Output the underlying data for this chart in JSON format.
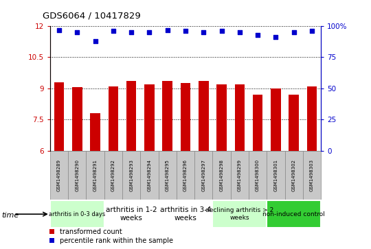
{
  "title": "GDS6064 / 10417829",
  "samples": [
    "GSM1498289",
    "GSM1498290",
    "GSM1498291",
    "GSM1498292",
    "GSM1498293",
    "GSM1498294",
    "GSM1498295",
    "GSM1498296",
    "GSM1498297",
    "GSM1498298",
    "GSM1498299",
    "GSM1498300",
    "GSM1498301",
    "GSM1498302",
    "GSM1498303"
  ],
  "bar_values": [
    9.3,
    9.05,
    7.8,
    9.1,
    9.35,
    9.2,
    9.35,
    9.25,
    9.35,
    9.2,
    9.2,
    8.7,
    9.0,
    8.7,
    9.1
  ],
  "dot_values": [
    97,
    95,
    88,
    96,
    95,
    95,
    97,
    96,
    95,
    96,
    95,
    93,
    91,
    95,
    96
  ],
  "bar_color": "#cc0000",
  "dot_color": "#0000cc",
  "ylim_left": [
    6,
    12
  ],
  "ylim_right": [
    0,
    100
  ],
  "yticks_left": [
    6,
    7.5,
    9,
    10.5,
    12
  ],
  "yticks_right": [
    0,
    25,
    50,
    75,
    100
  ],
  "groups": [
    {
      "label": "arthritis in 0-3 days",
      "start": 0,
      "end": 3,
      "color": "#ccffcc",
      "fontsize": 6
    },
    {
      "label": "arthritis in 1-2\nweeks",
      "start": 3,
      "end": 6,
      "color": "#ffffff",
      "fontsize": 7.5
    },
    {
      "label": "arthritis in 3-4\nweeks",
      "start": 6,
      "end": 9,
      "color": "#ffffff",
      "fontsize": 7.5
    },
    {
      "label": "declining arthritis > 2\nweeks",
      "start": 9,
      "end": 12,
      "color": "#ccffcc",
      "fontsize": 6.5
    },
    {
      "label": "non-induced control",
      "start": 12,
      "end": 15,
      "color": "#33cc33",
      "fontsize": 6.5
    }
  ],
  "legend_bar_label": "transformed count",
  "legend_dot_label": "percentile rank within the sample",
  "time_label": "time",
  "bar_width": 0.55,
  "sample_box_color": "#c8c8c8",
  "sample_box_edge": "#888888"
}
